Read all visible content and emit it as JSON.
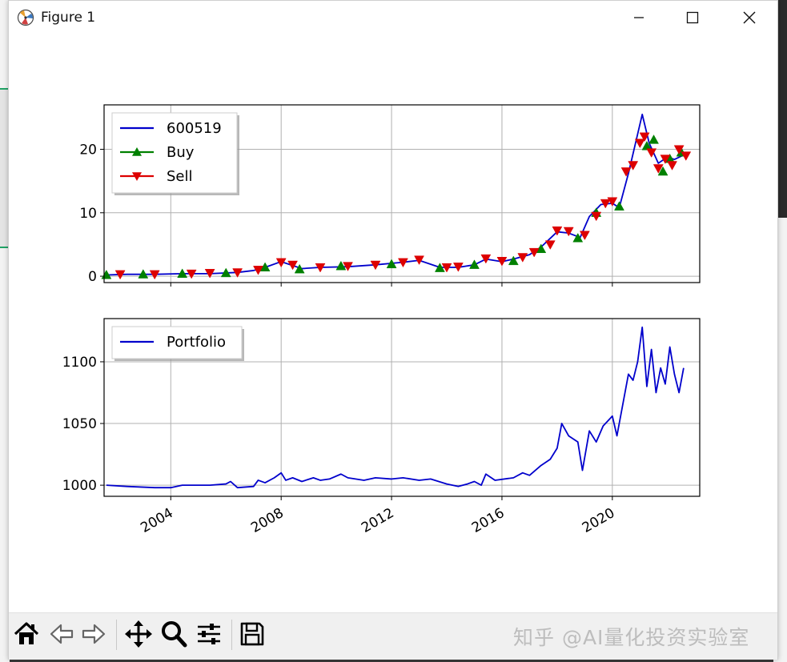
{
  "window": {
    "title": "Figure 1"
  },
  "watermark": "知乎 @AI量化投资实验室",
  "toolbar": {
    "buttons": [
      "home-icon",
      "back-icon",
      "forward-icon",
      "pan-icon",
      "zoom-icon",
      "configure-subplots-icon",
      "save-icon"
    ]
  },
  "chart_data": [
    {
      "type": "line",
      "ylim": [
        -1,
        27
      ],
      "yticks": [
        "0",
        "10",
        "20"
      ],
      "x_range": [
        "2001-08",
        "2023-03"
      ],
      "grid": true,
      "legend_position": "upper-left",
      "legend": [
        "600519",
        "Buy",
        "Sell"
      ],
      "series": [
        {
          "name": "600519",
          "color": "#0000cc",
          "x": [
            "2001-09",
            "2002-06",
            "2003-06",
            "2004-06",
            "2005-06",
            "2006-06",
            "2007-01",
            "2007-06",
            "2008-01",
            "2008-10",
            "2009-06",
            "2010-06",
            "2011-06",
            "2012-06",
            "2013-01",
            "2013-10",
            "2014-06",
            "2015-01",
            "2015-06",
            "2016-01",
            "2016-06",
            "2017-01",
            "2017-06",
            "2018-01",
            "2018-06",
            "2018-11",
            "2019-03",
            "2019-08",
            "2020-01",
            "2020-04",
            "2020-08",
            "2021-02",
            "2021-05",
            "2021-09",
            "2022-01",
            "2022-04",
            "2022-08"
          ],
          "values": [
            0.2,
            0.3,
            0.3,
            0.4,
            0.4,
            0.6,
            0.9,
            1.4,
            2.3,
            1.2,
            1.4,
            1.5,
            1.8,
            2.2,
            2.5,
            1.4,
            1.4,
            1.8,
            2.7,
            2.3,
            2.7,
            3.4,
            4.6,
            7.0,
            6.8,
            6.1,
            9.4,
            11.3,
            11.5,
            10.8,
            16.2,
            25.5,
            21.0,
            17.8,
            18.8,
            18.4,
            19.1
          ]
        },
        {
          "name": "Buy",
          "color": "#008000",
          "marker": "triangle-up",
          "x": [
            "2001-09",
            "2003-01",
            "2004-06",
            "2006-01",
            "2007-06",
            "2008-09",
            "2010-03",
            "2012-01",
            "2013-10",
            "2015-01",
            "2016-06",
            "2017-06",
            "2018-10",
            "2019-06",
            "2020-04",
            "2021-04",
            "2021-07",
            "2021-11",
            "2022-02",
            "2022-07"
          ],
          "values": [
            0.2,
            0.3,
            0.4,
            0.5,
            1.4,
            1.1,
            1.6,
            1.9,
            1.3,
            1.8,
            2.4,
            4.3,
            6.0,
            10.0,
            11.0,
            20.5,
            21.5,
            16.5,
            18.5,
            19.5
          ]
        },
        {
          "name": "Sell",
          "color": "#dd0000",
          "marker": "triangle-down",
          "x": [
            "2002-03",
            "2003-06",
            "2004-10",
            "2005-06",
            "2006-06",
            "2007-03",
            "2008-01",
            "2008-06",
            "2009-06",
            "2010-06",
            "2011-06",
            "2012-06",
            "2013-01",
            "2014-01",
            "2014-06",
            "2015-06",
            "2016-01",
            "2016-10",
            "2017-03",
            "2017-10",
            "2018-01",
            "2018-06",
            "2019-01",
            "2019-06",
            "2019-10",
            "2020-01",
            "2020-07",
            "2020-10",
            "2021-01",
            "2021-03",
            "2021-06",
            "2021-09",
            "2021-12",
            "2022-03",
            "2022-06",
            "2022-09"
          ],
          "values": [
            0.3,
            0.3,
            0.4,
            0.5,
            0.6,
            1.0,
            2.2,
            1.8,
            1.4,
            1.6,
            1.8,
            2.2,
            2.6,
            1.4,
            1.5,
            2.8,
            2.4,
            3.0,
            3.8,
            5.0,
            7.2,
            7.1,
            6.5,
            9.5,
            11.5,
            11.8,
            16.5,
            17.5,
            21.0,
            22.0,
            19.5,
            17.0,
            18.5,
            17.5,
            20.0,
            19.0
          ]
        }
      ]
    },
    {
      "type": "line",
      "ylim": [
        991,
        1135
      ],
      "yticks": [
        "1000",
        "1050",
        "1100"
      ],
      "xticks": [
        "2004",
        "2008",
        "2012",
        "2016",
        "2020"
      ],
      "x_range": [
        "2001-08",
        "2023-03"
      ],
      "grid": true,
      "legend_position": "upper-left",
      "legend": [
        "Portfolio"
      ],
      "series": [
        {
          "name": "Portfolio",
          "color": "#0000cc",
          "x": [
            "2001-09",
            "2002-06",
            "2003-06",
            "2004-01",
            "2004-06",
            "2005-06",
            "2006-01",
            "2006-03",
            "2006-06",
            "2007-01",
            "2007-03",
            "2007-06",
            "2007-10",
            "2008-01",
            "2008-03",
            "2008-06",
            "2008-10",
            "2009-03",
            "2009-06",
            "2009-10",
            "2010-03",
            "2010-06",
            "2011-01",
            "2011-06",
            "2012-01",
            "2012-06",
            "2013-01",
            "2013-06",
            "2014-01",
            "2014-06",
            "2014-10",
            "2015-01",
            "2015-04",
            "2015-06",
            "2015-10",
            "2016-06",
            "2016-10",
            "2017-01",
            "2017-06",
            "2017-10",
            "2018-01",
            "2018-03",
            "2018-06",
            "2018-10",
            "2018-12",
            "2019-03",
            "2019-06",
            "2019-09",
            "2020-01",
            "2020-03",
            "2020-05",
            "2020-08",
            "2020-10",
            "2020-12",
            "2021-02",
            "2021-04",
            "2021-06",
            "2021-08",
            "2021-10",
            "2021-12",
            "2022-02",
            "2022-04",
            "2022-06",
            "2022-08"
          ],
          "values": [
            1000,
            999,
            998,
            998,
            1000,
            1000,
            1001,
            1003,
            998,
            999,
            1004,
            1002,
            1006,
            1010,
            1004,
            1006,
            1003,
            1006,
            1004,
            1005,
            1009,
            1006,
            1004,
            1006,
            1005,
            1006,
            1004,
            1005,
            1001,
            999,
            1001,
            1003,
            1000,
            1009,
            1004,
            1006,
            1010,
            1008,
            1016,
            1021,
            1030,
            1050,
            1040,
            1035,
            1012,
            1044,
            1035,
            1048,
            1056,
            1040,
            1060,
            1090,
            1085,
            1100,
            1128,
            1080,
            1110,
            1075,
            1095,
            1082,
            1112,
            1090,
            1075,
            1095
          ]
        }
      ]
    }
  ]
}
